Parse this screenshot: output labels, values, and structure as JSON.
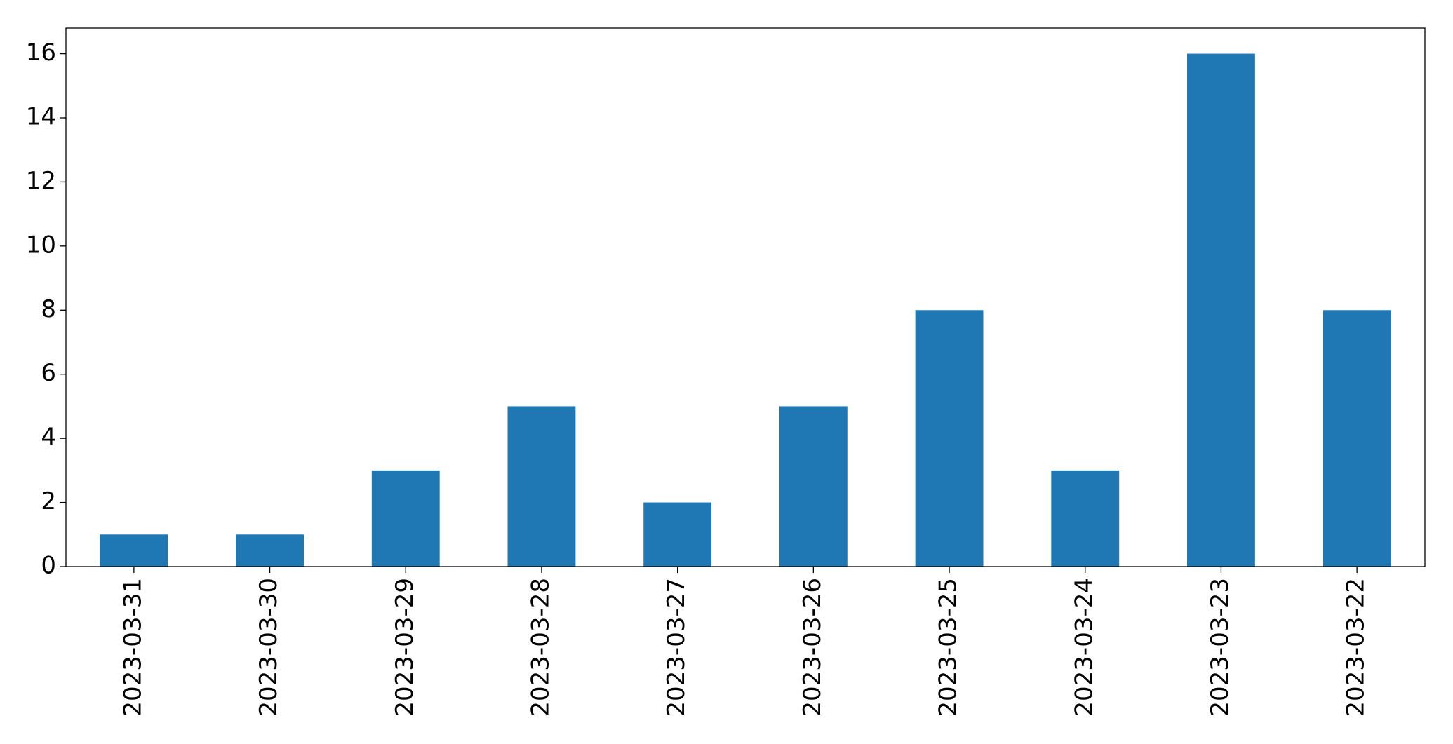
{
  "chart_data": {
    "type": "bar",
    "categories": [
      "2023-03-31",
      "2023-03-30",
      "2023-03-29",
      "2023-03-28",
      "2023-03-27",
      "2023-03-26",
      "2023-03-25",
      "2023-03-24",
      "2023-03-23",
      "2023-03-22"
    ],
    "values": [
      1,
      1,
      3,
      5,
      2,
      5,
      8,
      3,
      16,
      8
    ],
    "color": "#1f77b4",
    "ylim": [
      0,
      16.8
    ],
    "yticks": [
      0,
      2,
      4,
      6,
      8,
      10,
      12,
      14,
      16
    ],
    "grid": false
  }
}
